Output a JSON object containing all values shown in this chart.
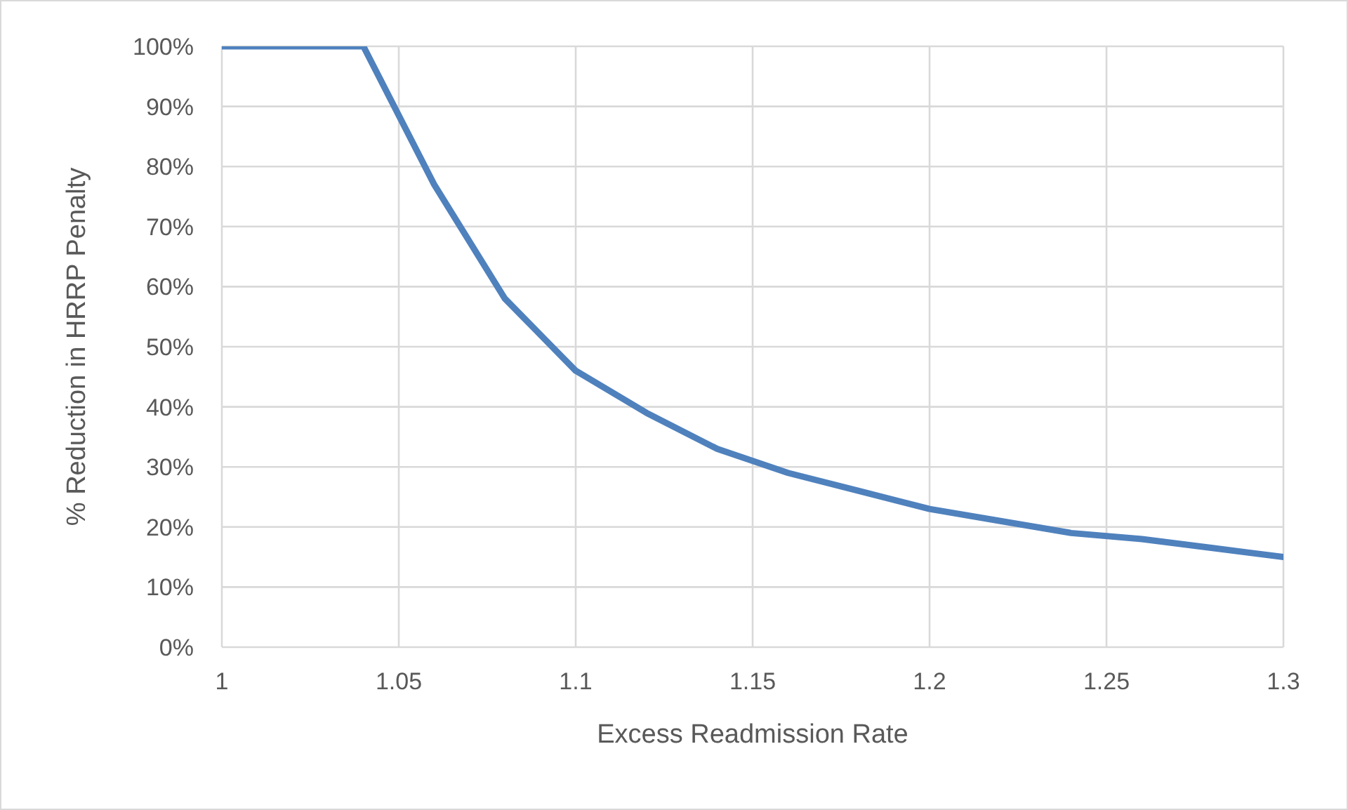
{
  "chart_data": {
    "type": "line",
    "xlabel": "Excess Readmission Rate",
    "ylabel": "% Reduction in HRRP Penalty",
    "x": [
      1,
      1.02,
      1.04,
      1.06,
      1.08,
      1.1,
      1.12,
      1.14,
      1.16,
      1.18,
      1.2,
      1.22,
      1.24,
      1.26,
      1.28,
      1.3
    ],
    "series": [
      {
        "color": "#4f81bd",
        "values": [
          100,
          100,
          100,
          77,
          58,
          46,
          39,
          33,
          29,
          26,
          23,
          21,
          19,
          18,
          16.5,
          15
        ]
      }
    ],
    "xlim": [
      1,
      1.3
    ],
    "xticks": [
      1,
      1.05,
      1.1,
      1.15,
      1.2,
      1.25,
      1.3
    ],
    "ylim": [
      0,
      100
    ],
    "yticks": [
      {
        "value": 0,
        "label": "0%"
      },
      {
        "value": 10,
        "label": "10%"
      },
      {
        "value": 20,
        "label": "20%"
      },
      {
        "value": 30,
        "label": "30%"
      },
      {
        "value": 40,
        "label": "40%"
      },
      {
        "value": 50,
        "label": "50%"
      },
      {
        "value": 60,
        "label": "60%"
      },
      {
        "value": 70,
        "label": "70%"
      },
      {
        "value": 80,
        "label": "80%"
      },
      {
        "value": 90,
        "label": "90%"
      },
      {
        "value": 100,
        "label": "100%"
      }
    ],
    "grid": true,
    "marker": "none",
    "line_style": "solid",
    "legend": false
  }
}
